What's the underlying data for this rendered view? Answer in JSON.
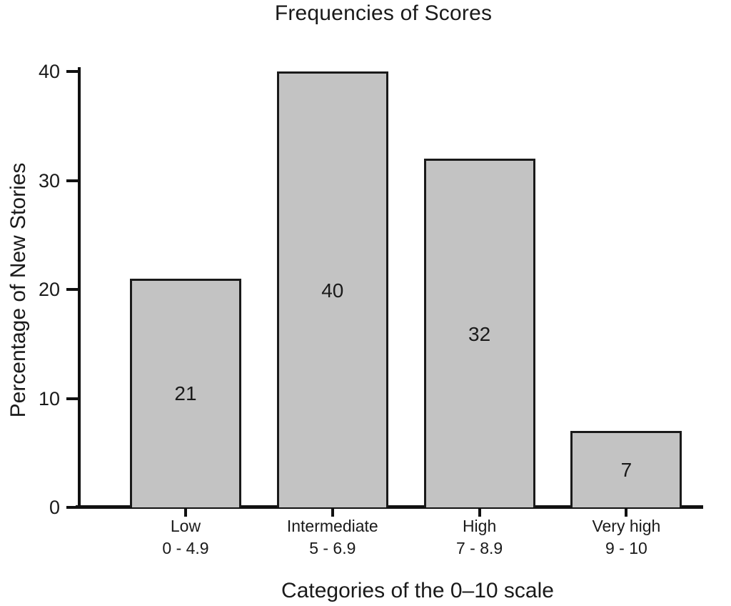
{
  "chart_data": {
    "type": "bar",
    "title": "Frequencies of Scores",
    "xlabel": "Categories of the 0–10 scale",
    "ylabel": "Percentage of New Stories",
    "categories": [
      "Low",
      "Intermediate",
      "High",
      "Very high"
    ],
    "category_ranges": [
      "0 - 4.9",
      "5 - 6.9",
      "7 - 8.9",
      "9 - 10"
    ],
    "values": [
      21,
      40,
      32,
      7
    ],
    "value_labels": [
      "21",
      "40",
      "32",
      "7"
    ],
    "yticks": [
      0,
      10,
      20,
      30,
      40
    ],
    "ylim": [
      0,
      40
    ],
    "legend": "none",
    "grid": false,
    "value_labels_position": "inside-center",
    "colors": {
      "bar_fill": "#c3c3c3",
      "bar_border": "#1a1a1a",
      "axis": "#111111",
      "text": "#1a1a1a",
      "background": "#ffffff"
    }
  }
}
